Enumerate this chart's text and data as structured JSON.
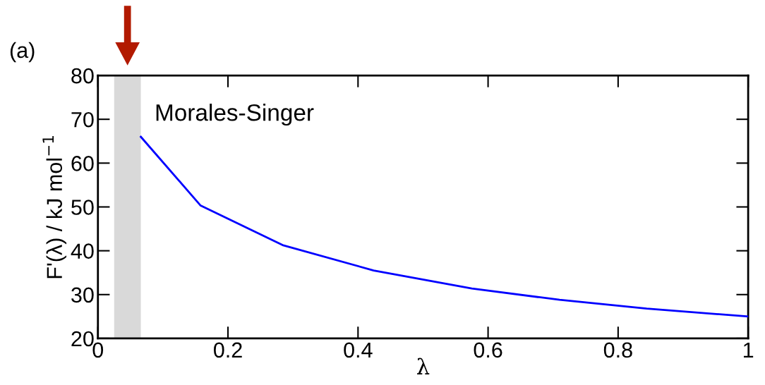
{
  "chart_data": {
    "type": "line",
    "xlabel": "λ",
    "ylabel": "F'(λ) / kJ mol$^{−1}$",
    "annotations": [
      "(a)"
    ],
    "x": [
      0.066,
      0.158,
      0.284,
      0.424,
      0.575,
      0.71,
      0.844,
      1.0
    ],
    "series": [
      {
        "color": "#0000ff",
        "values": [
          66.0,
          50.3,
          41.3,
          35.5,
          31.4,
          28.8,
          26.8,
          25.0
        ]
      }
    ],
    "bands": [
      {
        "axis": "x",
        "from": 0.025,
        "to": 0.066,
        "label": "Morales-Singer",
        "color": "#d9d9d9"
      }
    ],
    "xlim": [
      0,
      1
    ],
    "xticks": [
      0,
      0.2,
      0.4,
      0.6,
      0.8,
      1
    ],
    "ylim": [
      20,
      80
    ],
    "yticks": [
      20,
      30,
      40,
      50,
      60,
      70,
      80
    ],
    "grid": false,
    "legend": false,
    "marker": "none",
    "line_style": "solid"
  }
}
